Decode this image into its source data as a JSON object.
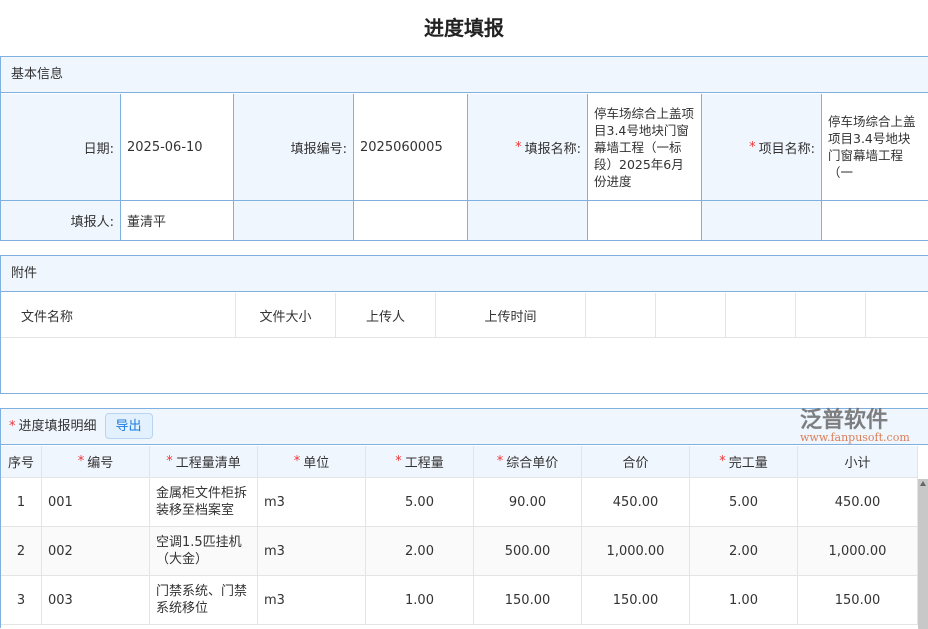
{
  "page_title": "进度填报",
  "basic": {
    "header": "基本信息",
    "date_label": "日期:",
    "date": "2025-06-10",
    "code_label": "填报编号:",
    "code": "2025060005",
    "name_label": "填报名称:",
    "name": "停车场综合上盖项目3.4号地块门窗幕墙工程（一标段）2025年6月份进度",
    "project_label": "项目名称:",
    "project": "停车场综合上盖项目3.4号地块门窗幕墙工程（一",
    "reporter_label": "填报人:",
    "reporter": "董清平"
  },
  "attachments": {
    "header": "附件",
    "columns": [
      "文件名称",
      "文件大小",
      "上传人",
      "上传时间"
    ]
  },
  "detail": {
    "header": "进度填报明细",
    "export": "导出",
    "columns": [
      "序号",
      "编号",
      "工程量清单",
      "单位",
      "工程量",
      "综合单价",
      "合价",
      "完工量",
      "小计"
    ],
    "rows": [
      [
        "1",
        "001",
        "金属柜文件柜拆装移至档案室",
        "m3",
        "5.00",
        "90.00",
        "450.00",
        "5.00",
        "450.00"
      ],
      [
        "2",
        "002",
        "空调1.5匹挂机（大金）",
        "m3",
        "2.00",
        "500.00",
        "1,000.00",
        "2.00",
        "1,000.00"
      ],
      [
        "3",
        "003",
        "门禁系统、门禁系统移位",
        "m3",
        "1.00",
        "150.00",
        "150.00",
        "1.00",
        "150.00"
      ]
    ]
  },
  "watermark": {
    "text": "泛普软件",
    "url": "www.fanpusoft.com"
  }
}
